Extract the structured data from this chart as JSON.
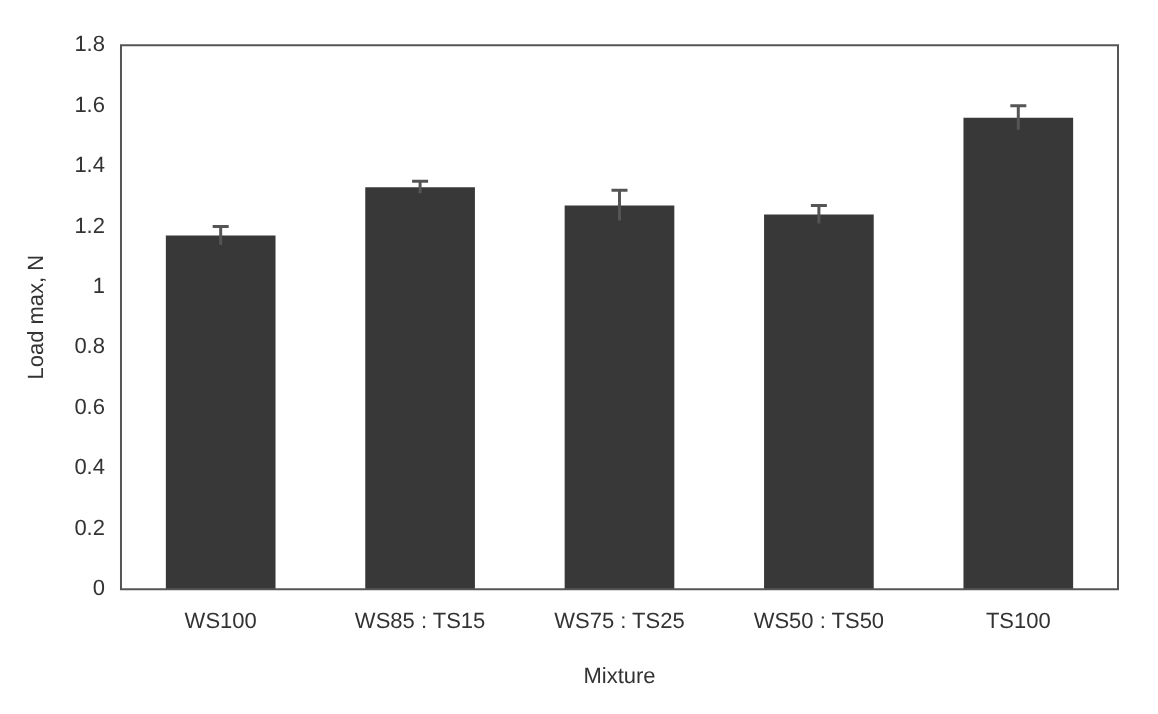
{
  "chart_data": {
    "type": "bar",
    "xlabel": "Mixture",
    "ylabel": "Load max, N",
    "categories": [
      "WS100",
      "WS85 : TS15",
      "WS75 : TS25",
      "WS50 : TS50",
      "TS100"
    ],
    "values": [
      1.17,
      1.33,
      1.27,
      1.24,
      1.56
    ],
    "errors": [
      0.03,
      0.02,
      0.05,
      0.03,
      0.04
    ],
    "color": "#383838",
    "ylim": [
      0,
      1.8
    ],
    "yticks": [
      0,
      0.2,
      0.4,
      0.6,
      0.8,
      1,
      1.2,
      1.4,
      1.6,
      1.8
    ],
    "grid": false,
    "legend": false
  }
}
